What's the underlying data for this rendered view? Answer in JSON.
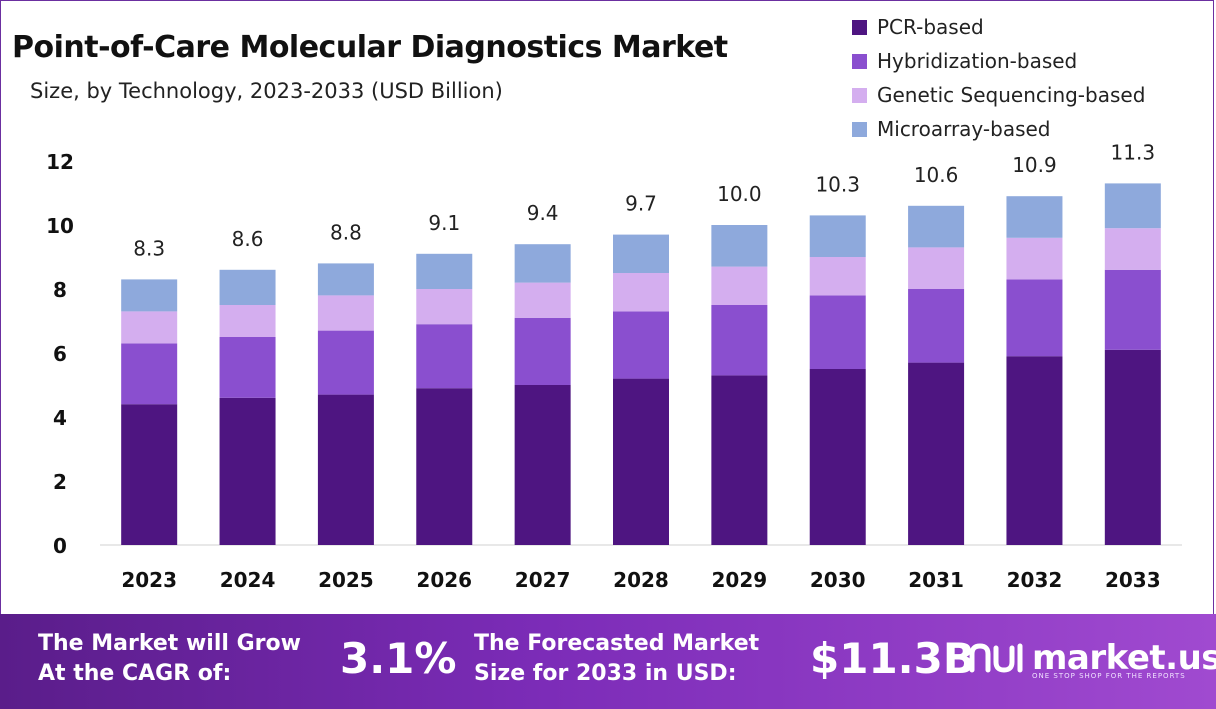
{
  "header": {
    "title": "Point-of-Care Molecular Diagnostics Market",
    "subtitle": "Size, by Technology, 2023-2033 (USD Billion)"
  },
  "legend": [
    {
      "label": "PCR-based",
      "color": "#4e1581"
    },
    {
      "label": "Hybridization-based",
      "color": "#8a4fcf"
    },
    {
      "label": "Genetic Sequencing-based",
      "color": "#d4aeef"
    },
    {
      "label": "Microarray-based",
      "color": "#8ea9dc"
    }
  ],
  "chart_data": {
    "type": "bar",
    "stacked": true,
    "categories": [
      "2023",
      "2024",
      "2025",
      "2026",
      "2027",
      "2028",
      "2029",
      "2030",
      "2031",
      "2032",
      "2033"
    ],
    "series": [
      {
        "name": "PCR-based",
        "color": "#4e1581",
        "values": [
          4.4,
          4.6,
          4.7,
          4.9,
          5.0,
          5.2,
          5.3,
          5.5,
          5.7,
          5.9,
          6.1
        ]
      },
      {
        "name": "Hybridization-based",
        "color": "#8a4fcf",
        "values": [
          1.9,
          1.9,
          2.0,
          2.0,
          2.1,
          2.1,
          2.2,
          2.3,
          2.3,
          2.4,
          2.5
        ]
      },
      {
        "name": "Genetic Sequencing-based",
        "color": "#d4aeef",
        "values": [
          1.0,
          1.0,
          1.1,
          1.1,
          1.1,
          1.2,
          1.2,
          1.2,
          1.3,
          1.3,
          1.3
        ]
      },
      {
        "name": "Microarray-based",
        "color": "#8ea9dc",
        "values": [
          1.0,
          1.1,
          1.0,
          1.1,
          1.2,
          1.2,
          1.3,
          1.3,
          1.3,
          1.3,
          1.4
        ]
      }
    ],
    "totals": [
      "8.3",
      "8.6",
      "8.8",
      "9.1",
      "9.4",
      "9.7",
      "10.0",
      "10.3",
      "10.6",
      "10.9",
      "11.3"
    ],
    "yticks": [
      "0",
      "2",
      "4",
      "6",
      "8",
      "10",
      "12"
    ],
    "ylim": [
      0,
      12
    ],
    "grid": false,
    "legend_position": "top-right"
  },
  "footer": {
    "cagr_label_line1": "The Market will Grow",
    "cagr_label_line2": "At the CAGR of:",
    "cagr_value": "3.1%",
    "forecast_label_line1": "The Forecasted Market",
    "forecast_label_line2": "Size for 2033 in USD:",
    "forecast_value": "$11.3B",
    "brand_name": "market.us",
    "brand_tagline": "ONE STOP SHOP FOR THE REPORTS",
    "brand_icon": "market-us-logo-icon"
  }
}
